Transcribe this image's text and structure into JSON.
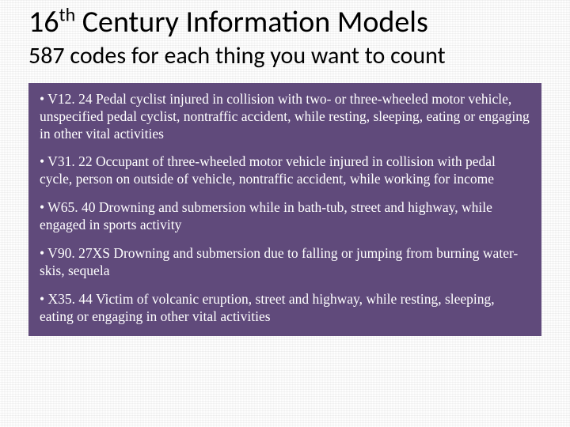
{
  "title_prefix": "16",
  "title_sup": "th",
  "title_rest": " Century Information Models",
  "subtitle": "587 codes for each thing you want to count",
  "box": {
    "background_color": "#604a7b",
    "text_color": "#ffffff",
    "items": [
      "• V12. 24 Pedal cyclist injured in collision with two- or three-wheeled motor vehicle, unspecified pedal cyclist, nontraffic accident, while resting, sleeping, eating or engaging in other vital activities",
      "• V31. 22 Occupant of three-wheeled motor vehicle injured in collision with pedal cycle, person on outside of vehicle, nontraffic accident, while working for income",
      "• W65. 40 Drowning and submersion while in bath-tub, street and highway, while engaged in sports activity",
      "• V90. 27XS Drowning and submersion due to falling or jumping from burning water-skis, sequela",
      "• X35. 44 Victim of volcanic eruption, street and highway, while resting, sleeping, eating or engaging in other vital activities"
    ]
  },
  "title_color": "#1f1f1f",
  "subtitle_color": "#1f1f1f",
  "title_fontsize": 38,
  "subtitle_fontsize": 30,
  "box_fontsize": 17.5
}
